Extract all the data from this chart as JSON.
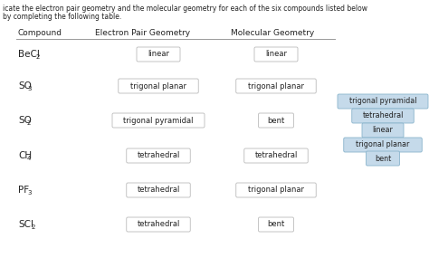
{
  "title_line1": "icate the electron pair geometry and the molecular geometry for each of the six compounds listed below",
  "title_line2": "by completing the following table.",
  "header": [
    "Compound",
    "Electron Pair Geometry",
    "Molecular Geometry"
  ],
  "compound_bases": [
    "BeCl",
    "SO",
    "SO",
    "CH",
    "PF",
    "SCl"
  ],
  "compound_subs": [
    "2",
    "3",
    "2",
    "4",
    "3",
    "2"
  ],
  "electron_pair": [
    "linear",
    "trigonal planar",
    "trigonal pyramidal",
    "tetrahedral",
    "tetrahedral",
    "tetrahedral"
  ],
  "molecular": [
    "linear",
    "trigonal planar",
    "bent",
    "tetrahedral",
    "trigonal planar",
    "bent"
  ],
  "input_box_color": "#ffffff",
  "input_box_edge": "#bbbbbb",
  "bg_color": "#ffffff",
  "text_color": "#222222",
  "sidebar_labels": [
    "trigonal pyramidal",
    "tetrahedral",
    "linear",
    "trigonal planar",
    "bent"
  ],
  "sidebar_color": "#c5daea",
  "sidebar_edge": "#8ab4cc"
}
